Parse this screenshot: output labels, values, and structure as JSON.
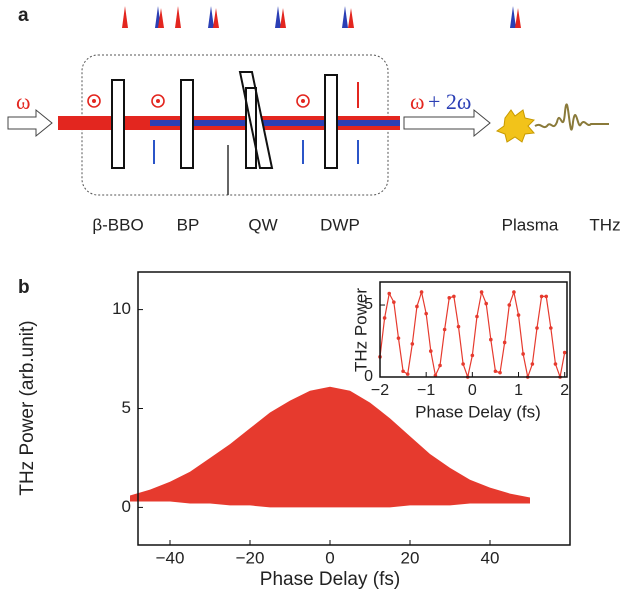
{
  "panel_a": {
    "label": "a",
    "input_label": "ω",
    "output_label_omega": "ω",
    "output_label_second": "+ 2ω",
    "components": [
      "β-BBO",
      "BP",
      "QW",
      "DWP",
      "Plasma",
      "THz"
    ]
  },
  "panel_b": {
    "label": "b"
  },
  "chart_data": [
    {
      "type": "range-area",
      "color": "#e63a2e",
      "xlabel": "Phase Delay (fs)",
      "ylabel": "THz Power (arb.unit)",
      "x": [
        -50,
        -45,
        -40,
        -35,
        -30,
        -25,
        -20,
        -15,
        -10,
        -5,
        0,
        5,
        10,
        15,
        20,
        25,
        30,
        35,
        40,
        45,
        50
      ],
      "upper": [
        0.6,
        0.9,
        1.3,
        1.8,
        2.5,
        3.2,
        4.0,
        4.8,
        5.4,
        5.9,
        6.1,
        5.9,
        5.3,
        4.5,
        3.6,
        2.7,
        2.0,
        1.4,
        1.0,
        0.7,
        0.5
      ],
      "lower": [
        0.3,
        0.3,
        0.3,
        0.2,
        0.2,
        0.1,
        0.1,
        0,
        0,
        0,
        0,
        0,
        0,
        0,
        0.1,
        0.1,
        0.1,
        0.2,
        0.2,
        0.2,
        0.2
      ],
      "xlim": [
        -48,
        60
      ],
      "ylim": [
        -1.9,
        11.9
      ],
      "xticks": [
        {
          "value": -40,
          "label": "−40"
        },
        {
          "value": -20,
          "label": "−20"
        },
        0,
        20,
        40
      ],
      "yticks": [
        0,
        5,
        10
      ],
      "grid": false
    },
    {
      "type": "line",
      "color": "#e63a2e",
      "markers": true,
      "xlabel": "Phase Delay (fs)",
      "ylabel": "THz Power",
      "x": [
        -2.0,
        -1.9,
        -1.8,
        -1.7,
        -1.6,
        -1.5,
        -1.4,
        -1.3,
        -1.2,
        -1.1,
        -1.0,
        -0.9,
        -0.8,
        -0.7,
        -0.6,
        -0.5,
        -0.4,
        -0.3,
        -0.2,
        -0.1,
        0.0,
        0.1,
        0.2,
        0.3,
        0.4,
        0.5,
        0.6,
        0.7,
        0.8,
        0.9,
        1.0,
        1.1,
        1.2,
        1.3,
        1.4,
        1.5,
        1.6,
        1.7,
        1.8,
        1.9,
        2.0
      ],
      "values": [
        1.4,
        4.1,
        5.8,
        5.2,
        2.7,
        0.4,
        0.2,
        2.3,
        4.9,
        5.9,
        4.4,
        1.8,
        0.1,
        0.8,
        3.3,
        5.5,
        5.6,
        3.5,
        0.9,
        0.0,
        1.5,
        4.2,
        5.9,
        5.1,
        2.6,
        0.4,
        0.3,
        2.4,
        5.0,
        5.9,
        4.3,
        1.6,
        0.0,
        0.9,
        3.4,
        5.6,
        5.6,
        3.4,
        0.9,
        0.0,
        1.7
      ],
      "xlim": [
        -2,
        2.05
      ],
      "ylim": [
        0,
        6.6
      ],
      "xticks": [
        {
          "value": -2,
          "label": "−2"
        },
        {
          "value": -1,
          "label": "−1"
        },
        0,
        1,
        2
      ],
      "yticks": [
        0,
        5
      ],
      "grid": false
    }
  ]
}
